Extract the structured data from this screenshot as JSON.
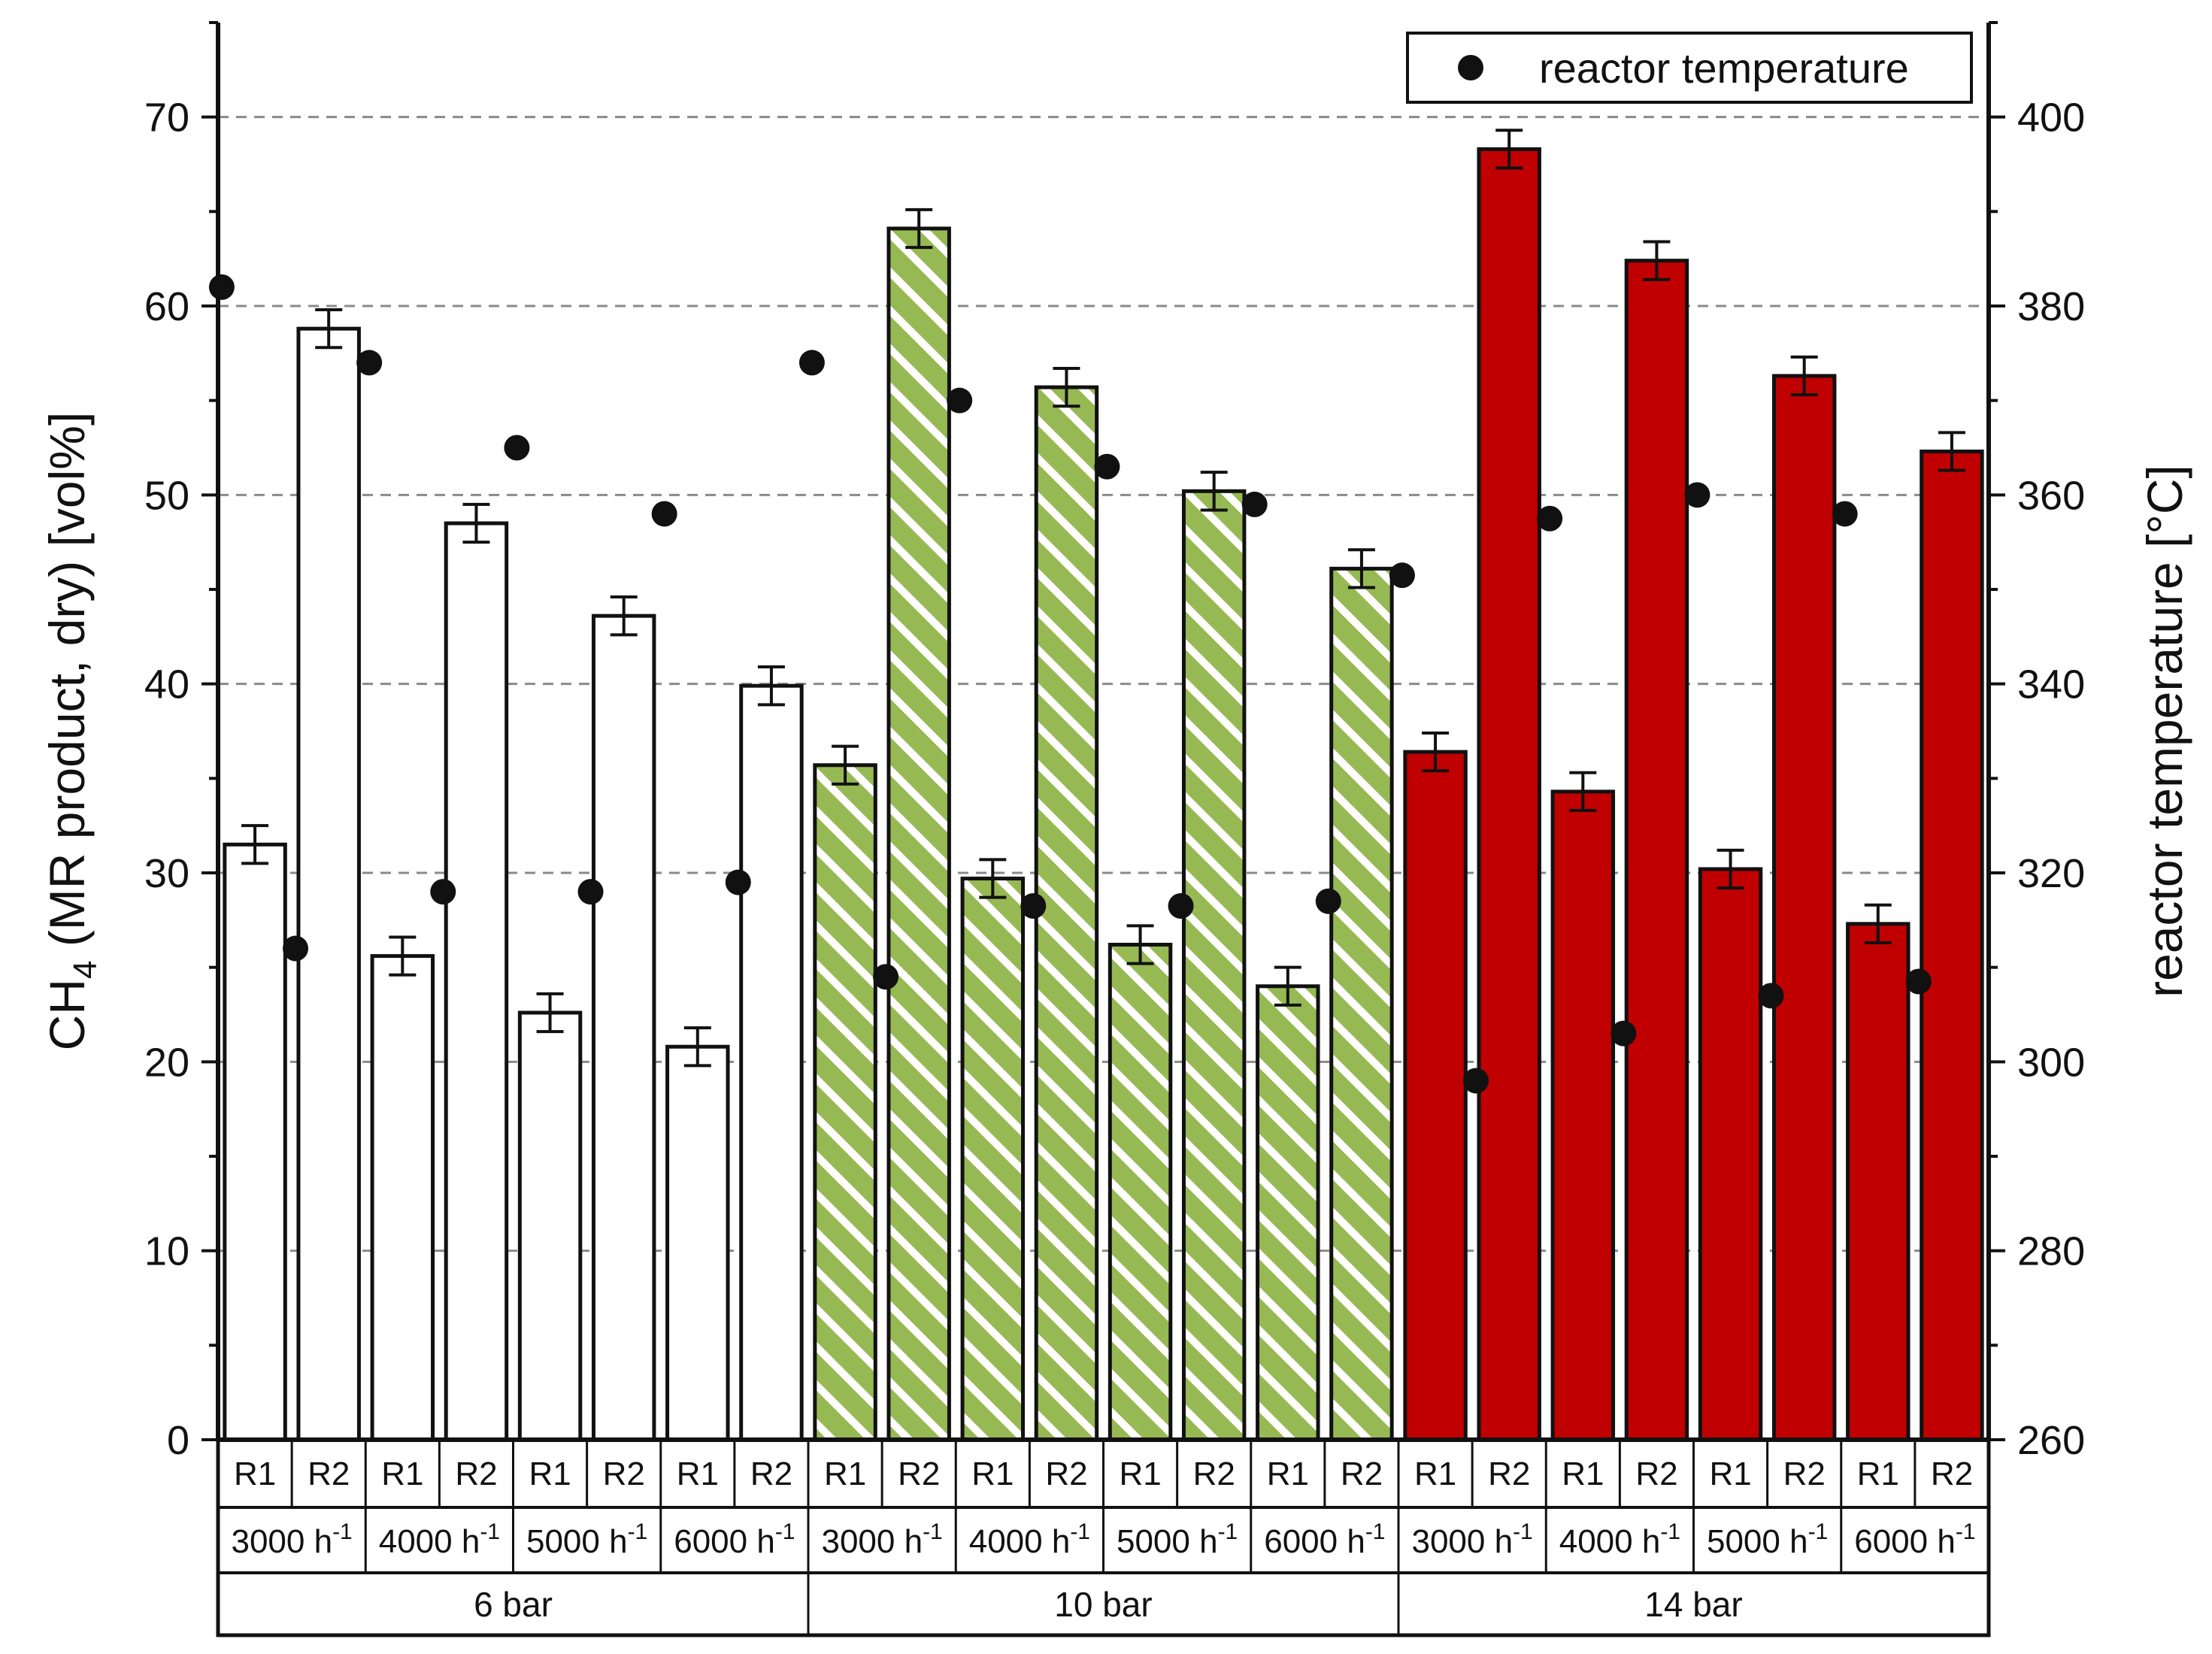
{
  "chart_data": {
    "type": "bar",
    "ylabel": {
      "base": "CH",
      "sub": "4",
      "rest": " (MR product, dry) [vol%]"
    },
    "y2label": "reactor temperature [°C]",
    "ylim": [
      0,
      75
    ],
    "y2lim": [
      260,
      410
    ],
    "yticks": [
      "0",
      "10",
      "20",
      "30",
      "40",
      "50",
      "60",
      "70"
    ],
    "y2ticks": [
      "260",
      "280",
      "300",
      "320",
      "340",
      "360",
      "380",
      "400"
    ],
    "gridlines": [
      10,
      20,
      30,
      40,
      50,
      60,
      70
    ],
    "legend": {
      "label": "reactor temperature",
      "position": "top-right"
    },
    "reactor_labels": [
      "R1",
      "R2",
      "R1",
      "R2",
      "R1",
      "R2",
      "R1",
      "R2",
      "R1",
      "R2",
      "R1",
      "R2",
      "R1",
      "R2",
      "R1",
      "R2",
      "R1",
      "R2",
      "R1",
      "R2",
      "R1",
      "R2",
      "R1",
      "R2"
    ],
    "space_velocity_labels": [
      {
        "value": "3000",
        "unit": "h",
        "sup": "-1"
      },
      {
        "value": "4000",
        "unit": "h",
        "sup": "-1"
      },
      {
        "value": "5000",
        "unit": "h",
        "sup": "-1"
      },
      {
        "value": "6000",
        "unit": "h",
        "sup": "-1"
      },
      {
        "value": "3000",
        "unit": "h",
        "sup": "-1"
      },
      {
        "value": "4000",
        "unit": "h",
        "sup": "-1"
      },
      {
        "value": "5000",
        "unit": "h",
        "sup": "-1"
      },
      {
        "value": "6000",
        "unit": "h",
        "sup": "-1"
      },
      {
        "value": "3000",
        "unit": "h",
        "sup": "-1"
      },
      {
        "value": "4000",
        "unit": "h",
        "sup": "-1"
      },
      {
        "value": "5000",
        "unit": "h",
        "sup": "-1"
      },
      {
        "value": "6000",
        "unit": "h",
        "sup": "-1"
      }
    ],
    "pressure_labels": [
      "6 bar",
      "10 bar",
      "14 bar"
    ],
    "groups": [
      {
        "pressure": "6 bar",
        "style": "white",
        "ch4": [
          31.5,
          58.8,
          25.6,
          48.5,
          22.6,
          43.6,
          20.8,
          39.9
        ],
        "error": [
          1.0,
          1.0,
          1.0,
          1.0,
          1.0,
          1.0,
          1.0,
          1.0
        ],
        "temperature": [
          382,
          312,
          374,
          318,
          365,
          318,
          358,
          319
        ]
      },
      {
        "pressure": "10 bar",
        "style": "green-hatch",
        "ch4": [
          35.7,
          64.1,
          29.7,
          55.7,
          26.2,
          50.2,
          24.0,
          46.1
        ],
        "error": [
          1.0,
          1.0,
          1.0,
          1.0,
          1.0,
          1.0,
          1.0,
          1.0
        ],
        "temperature": [
          374,
          309,
          370,
          316.5,
          363,
          316.5,
          359,
          317
        ]
      },
      {
        "pressure": "14 bar",
        "style": "red",
        "ch4": [
          36.4,
          68.3,
          34.3,
          62.4,
          30.2,
          56.3,
          27.3,
          52.3
        ],
        "error": [
          1.0,
          1.0,
          1.0,
          1.0,
          1.0,
          1.0,
          1.0,
          1.0
        ],
        "temperature": [
          351.5,
          298,
          357.5,
          303,
          360,
          307,
          358,
          308.5
        ]
      }
    ],
    "colors": {
      "white": "#ffffff",
      "green": "#97b954",
      "red": "#c00000",
      "axis": "#111111",
      "grid": "#8a8a8a"
    }
  }
}
